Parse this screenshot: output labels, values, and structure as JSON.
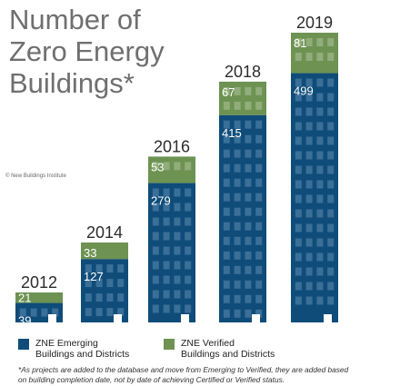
{
  "title_lines": [
    "Number of",
    "Zero Energy",
    "Buildings*"
  ],
  "credit": "© New Buildings Institute",
  "colors": {
    "emerging": "#0f4c7a",
    "verified": "#6d9252",
    "window": "#3a6f98",
    "window_verified": "#90ad7a",
    "year_text": "#2c2c2c"
  },
  "legend": {
    "emerging": {
      "line1": "ZNE Emerging",
      "line2": "Buildings and Districts"
    },
    "verified": {
      "line1": "ZNE Verified",
      "line2": "Buildings and Districts"
    }
  },
  "footnote": {
    "line1": "*As projects are added to the database and move from Emerging to Verified, they are added based",
    "line2": "on building completion date, not by date of achieving Certified or Verified status."
  },
  "chart_data": {
    "type": "bar",
    "stacked": true,
    "categories": [
      "2012",
      "2014",
      "2016",
      "2018",
      "2019"
    ],
    "series": [
      {
        "name": "ZNE Emerging Buildings and Districts",
        "values": [
          39,
          127,
          279,
          415,
          499
        ]
      },
      {
        "name": "ZNE Verified Buildings and Districts",
        "values": [
          21,
          33,
          53,
          67,
          81
        ]
      }
    ],
    "ylim": [
      0,
      600
    ],
    "grid": false,
    "legend_position": "bottom"
  }
}
